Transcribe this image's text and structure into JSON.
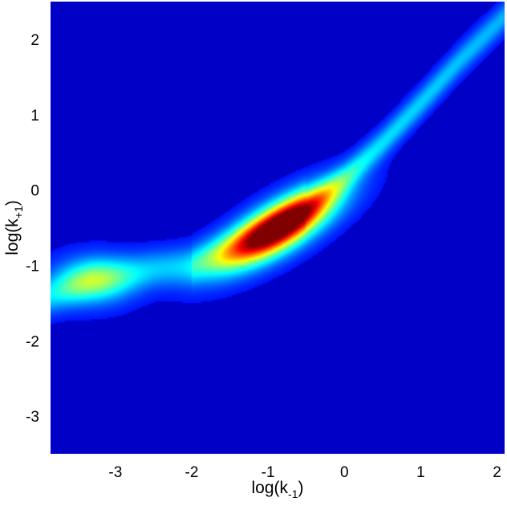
{
  "chart_data": {
    "type": "heatmap",
    "title": "",
    "xlabel": {
      "base": "log(k",
      "sub": "-1",
      "close": ")"
    },
    "ylabel": {
      "base": "log(k",
      "sub": "+1",
      "close": ")"
    },
    "xlim": [
      -3.85,
      2.1
    ],
    "ylim": [
      -3.5,
      2.5
    ],
    "x_ticks": [
      -3,
      -2,
      -1,
      0,
      1,
      2
    ],
    "y_ticks": [
      -3,
      -2,
      -1,
      0,
      1,
      2
    ],
    "x_tick_labels": [
      "-3",
      "-2",
      "-1",
      "0",
      "1",
      "2"
    ],
    "y_tick_labels": [
      "-3",
      "-2",
      "-1",
      "0",
      "1",
      "2"
    ],
    "colormap": "jet",
    "background_color": "#00008f",
    "density": {
      "ridge_points": [
        [
          -3.85,
          -1.4
        ],
        [
          -3.3,
          -1.2
        ],
        [
          -2.5,
          -1.05
        ],
        [
          -2.0,
          -1.0
        ],
        [
          -1.5,
          -0.8
        ],
        [
          -1.0,
          -0.55
        ],
        [
          -0.5,
          -0.25
        ],
        [
          0.0,
          0.15
        ],
        [
          0.5,
          0.62
        ],
        [
          1.0,
          1.15
        ],
        [
          1.5,
          1.7
        ],
        [
          2.0,
          2.2
        ],
        [
          2.1,
          2.3
        ]
      ],
      "peak": {
        "x": -0.85,
        "y": -0.5,
        "level": 1.0
      },
      "secondary_peak": {
        "x": -3.3,
        "y": -1.2,
        "level": 0.3
      }
    }
  }
}
